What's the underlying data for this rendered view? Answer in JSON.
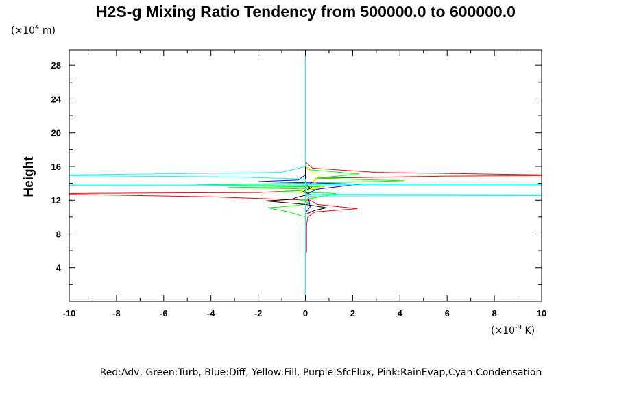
{
  "chart_data": {
    "type": "line",
    "title": "H2S-g Mixing Ratio Tendency from 500000.0 to 600000.0",
    "ylabel": "Height",
    "y_unit_prefix": "(×10",
    "y_unit_exp": "4",
    "y_unit_suffix": " m)",
    "x_unit_prefix": "(×10",
    "x_unit_exp": "-9",
    "x_unit_suffix": " K)",
    "xlim": [
      -10,
      10
    ],
    "ylim": [
      0,
      29.8
    ],
    "x_ticks": [
      -10,
      -8,
      -6,
      -4,
      -2,
      0,
      2,
      4,
      6,
      8,
      10
    ],
    "x_tick_labels": [
      "-10",
      "-8",
      "-6",
      "-4",
      "-2",
      "0",
      "2",
      "4",
      "6",
      "8",
      "10"
    ],
    "y_ticks": [
      4,
      8,
      12,
      16,
      20,
      24,
      28
    ],
    "y_tick_labels": [
      "4",
      "8",
      "12",
      "16",
      "20",
      "24",
      "28"
    ],
    "legend_text": "Red:Adv, Green:Turb, Blue:Diff, Yellow:Fill, Purple:SfcFlux, Pink:RainEvap,Cyan:Condensation",
    "legend_position": "bottom",
    "grid": false,
    "series": [
      {
        "color": "#ff0000",
        "points": [
          [
            0.05,
            5.8
          ],
          [
            0.05,
            9
          ],
          [
            0.1,
            10
          ],
          [
            0.4,
            10.6
          ],
          [
            2.2,
            11.0
          ],
          [
            0.5,
            11.5
          ],
          [
            0.2,
            12.0
          ],
          [
            -4,
            12.4
          ],
          [
            -10,
            12.7
          ],
          [
            -10,
            12.8
          ],
          [
            -2,
            12.9
          ],
          [
            0.3,
            13.2
          ],
          [
            0.2,
            14
          ],
          [
            0.5,
            14.6
          ],
          [
            6,
            14.85
          ],
          [
            10,
            14.9
          ],
          [
            10,
            15.0
          ],
          [
            3,
            15.3
          ],
          [
            0.3,
            15.8
          ],
          [
            0,
            16.5
          ]
        ]
      },
      {
        "color": "#00ff00",
        "points": [
          [
            0,
            0
          ],
          [
            0,
            10
          ],
          [
            -0.7,
            10.6
          ],
          [
            -1.6,
            11.1
          ],
          [
            -0.6,
            11.3
          ],
          [
            0.2,
            11.6
          ],
          [
            -0.2,
            12.0
          ],
          [
            0.8,
            12.5
          ],
          [
            1.3,
            12.8
          ],
          [
            -1.1,
            13.0
          ],
          [
            0.6,
            13.3
          ],
          [
            -3.3,
            13.5
          ],
          [
            0.8,
            13.6
          ],
          [
            -4.9,
            13.8
          ],
          [
            -0.4,
            14.0
          ],
          [
            4.2,
            14.3
          ],
          [
            0.4,
            14.6
          ],
          [
            2.3,
            15.1
          ],
          [
            0.2,
            15.6
          ],
          [
            0,
            16
          ]
        ]
      },
      {
        "color": "#0000ff",
        "points": [
          [
            0,
            0
          ],
          [
            0,
            10.5
          ],
          [
            0.2,
            11.2
          ],
          [
            0.1,
            12.8
          ],
          [
            0.5,
            13.3
          ],
          [
            2.3,
            13.9
          ],
          [
            0.4,
            14.05
          ],
          [
            -2,
            14.2
          ],
          [
            -0.3,
            14.4
          ],
          [
            0,
            15
          ],
          [
            0,
            16
          ]
        ]
      },
      {
        "color": "#ffff00",
        "points": [
          [
            0,
            0
          ],
          [
            0,
            12.0
          ],
          [
            0.4,
            12.6
          ],
          [
            -0.3,
            13.0
          ],
          [
            0.7,
            13.6
          ],
          [
            0.3,
            14.2
          ],
          [
            0.6,
            14.9
          ],
          [
            0.15,
            15.5
          ],
          [
            0,
            16
          ]
        ]
      },
      {
        "color": "#000000",
        "points": [
          [
            0,
            0
          ],
          [
            0,
            10.3
          ],
          [
            0.4,
            10.8
          ],
          [
            0.9,
            11.1
          ],
          [
            0,
            11.5
          ],
          [
            -1.7,
            11.9
          ],
          [
            -0.6,
            12.1
          ],
          [
            -0.3,
            12.4
          ],
          [
            0.2,
            12.7
          ],
          [
            -0.1,
            13.0
          ],
          [
            0.2,
            13.4
          ],
          [
            0,
            14
          ],
          [
            0,
            16
          ]
        ]
      },
      {
        "color": "#00ffff",
        "points": [
          [
            0,
            0
          ],
          [
            0,
            13.7
          ],
          [
            -10,
            13.7
          ],
          [
            -10,
            13.8
          ],
          [
            10,
            13.8
          ],
          [
            10,
            13.9
          ],
          [
            0,
            13.9
          ],
          [
            0,
            12.5
          ],
          [
            10,
            12.55
          ],
          [
            10,
            12.65
          ],
          [
            0,
            12.7
          ],
          [
            0,
            14.5
          ],
          [
            -3,
            14.75
          ],
          [
            -10,
            14.9
          ],
          [
            -10,
            15.0
          ],
          [
            -1,
            15.3
          ],
          [
            0,
            16
          ],
          [
            0,
            30
          ]
        ]
      }
    ]
  }
}
